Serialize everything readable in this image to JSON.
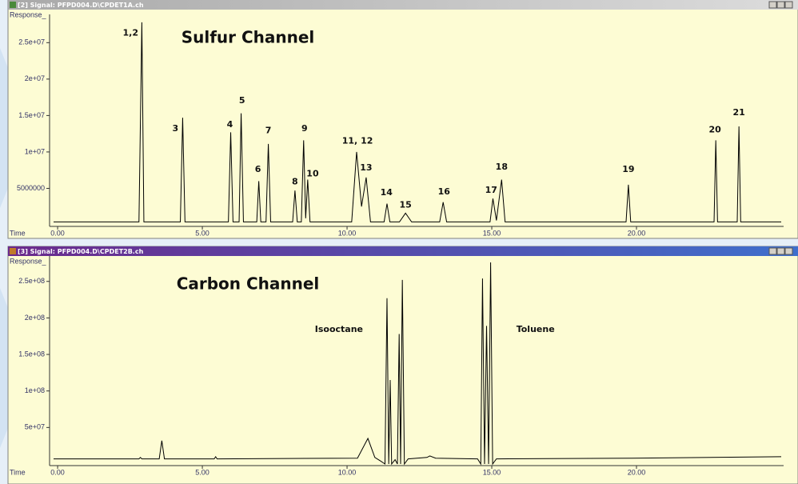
{
  "chart_data": [
    {
      "type": "line",
      "window_title": "[2] Signal: PFPD004.D\\CPDET1A.ch",
      "title": "Sulfur Channel",
      "y_label": "Response_",
      "x_label": "Time",
      "color": "#000000",
      "xlim": [
        -0.14,
        25.0
      ],
      "ylim": [
        0,
        28000000
      ],
      "xticks": [
        {
          "value": 0,
          "label": "0.00"
        },
        {
          "value": 5,
          "label": "5.00"
        },
        {
          "value": 10,
          "label": "10.00"
        },
        {
          "value": 15,
          "label": "15.00"
        },
        {
          "value": 20,
          "label": "20.00"
        }
      ],
      "yticks": [
        5000000,
        {
          "value": 10000000,
          "label": "1e+07"
        },
        {
          "value": 15000000,
          "label": "1.5e+07"
        },
        {
          "value": 20000000,
          "label": "2e+07"
        },
        {
          "value": 25000000,
          "label": "2.5e+07"
        }
      ],
      "x": [
        -0.14,
        2.81,
        2.91,
        2.98,
        4.24,
        4.32,
        4.4,
        5.9,
        5.98,
        6.06,
        6.27,
        6.34,
        6.42,
        6.88,
        6.95,
        7.02,
        7.2,
        7.28,
        7.36,
        8.12,
        8.2,
        8.28,
        8.42,
        8.5,
        8.57,
        8.64,
        8.72,
        10.16,
        10.33,
        10.5,
        10.66,
        10.81,
        11.28,
        11.38,
        11.48,
        11.81,
        12.02,
        12.23,
        13.2,
        13.32,
        13.44,
        14.94,
        15.04,
        15.16,
        15.34,
        15.46,
        19.64,
        19.72,
        19.8,
        22.68,
        22.74,
        22.8,
        23.48,
        23.54,
        23.6,
        25.0
      ],
      "values": [
        400000,
        400000,
        27800000,
        400000,
        400000,
        14700000,
        400000,
        400000,
        12700000,
        400000,
        400000,
        15300000,
        400000,
        400000,
        6000000,
        400000,
        400000,
        11100000,
        400000,
        400000,
        4700000,
        400000,
        400000,
        11600000,
        900000,
        6200000,
        400000,
        400000,
        10000000,
        2500000,
        6500000,
        400000,
        400000,
        2900000,
        400000,
        400000,
        1600000,
        400000,
        400000,
        3100000,
        400000,
        400000,
        3600000,
        600000,
        6200000,
        400000,
        400000,
        5500000,
        400000,
        400000,
        11600000,
        400000,
        400000,
        13500000,
        400000,
        400000
      ],
      "annotations": [
        {
          "text": "1,2",
          "x": 2.52,
          "y": 26300000
        },
        {
          "text": "3",
          "x": 4.07,
          "y": 13200000
        },
        {
          "text": "4",
          "x": 5.95,
          "y": 13700000
        },
        {
          "text": "5",
          "x": 6.37,
          "y": 17000000
        },
        {
          "text": "6",
          "x": 6.92,
          "y": 7600000
        },
        {
          "text": "7",
          "x": 7.28,
          "y": 12900000
        },
        {
          "text": "8",
          "x": 8.2,
          "y": 5900000
        },
        {
          "text": "9",
          "x": 8.53,
          "y": 13200000
        },
        {
          "text": "10",
          "x": 8.81,
          "y": 7000000
        },
        {
          "text": "11, 12",
          "x": 10.36,
          "y": 11500000
        },
        {
          "text": "13",
          "x": 10.66,
          "y": 7800000
        },
        {
          "text": "14",
          "x": 11.36,
          "y": 4400000
        },
        {
          "text": "15",
          "x": 12.02,
          "y": 2700000
        },
        {
          "text": "16",
          "x": 13.35,
          "y": 4500000
        },
        {
          "text": "17",
          "x": 14.98,
          "y": 4700000
        },
        {
          "text": "18",
          "x": 15.34,
          "y": 7900000
        },
        {
          "text": "19",
          "x": 19.72,
          "y": 7600000
        },
        {
          "text": "20",
          "x": 22.71,
          "y": 13000000
        },
        {
          "text": "21",
          "x": 23.54,
          "y": 15400000
        }
      ]
    },
    {
      "type": "line",
      "window_title": "[3] Signal: PFPD004.D\\CPDET2B.ch",
      "title": "Carbon Channel",
      "y_label": "Response_",
      "x_label": "Time",
      "color": "#000000",
      "xlim": [
        -0.14,
        25.0
      ],
      "ylim": [
        0,
        276000000
      ],
      "xticks": [
        {
          "value": 0,
          "label": "0.00"
        },
        {
          "value": 5,
          "label": "5.00"
        },
        {
          "value": 10,
          "label": "10.00"
        },
        {
          "value": 15,
          "label": "15.00"
        },
        {
          "value": 20,
          "label": "20.00"
        }
      ],
      "yticks": [
        {
          "value": 50000000,
          "label": "5e+07"
        },
        {
          "value": 100000000,
          "label": "1e+08"
        },
        {
          "value": 150000000,
          "label": "1.5e+08"
        },
        {
          "value": 200000000,
          "label": "2e+08"
        },
        {
          "value": 250000000,
          "label": "2.5e+08"
        }
      ],
      "x": [
        -0.14,
        2.81,
        2.86,
        2.91,
        3.51,
        3.6,
        3.69,
        5.41,
        5.46,
        5.51,
        10.36,
        10.72,
        10.96,
        11.16,
        11.31,
        11.38,
        11.44,
        11.49,
        11.54,
        11.66,
        11.74,
        11.8,
        11.85,
        11.91,
        11.98,
        12.11,
        12.76,
        12.86,
        13.06,
        14.51,
        14.62,
        14.68,
        14.75,
        14.82,
        14.89,
        14.96,
        15.03,
        15.16,
        19.86,
        25.0
      ],
      "values": [
        7000000,
        7000000,
        9000000,
        7000000,
        7000000,
        32000000,
        7000000,
        7000000,
        10000000,
        7000000,
        8000000,
        35000000,
        9000000,
        4000000,
        0,
        227000000,
        0,
        115000000,
        0,
        6000000,
        0,
        178000000,
        0,
        252000000,
        0,
        7000000,
        9000000,
        11000000,
        8000000,
        7000000,
        0,
        254000000,
        0,
        189000000,
        0,
        276000000,
        0,
        7000000,
        8000000,
        10000000
      ],
      "annotations": [
        {
          "text": "Isooctane",
          "x": 9.72,
          "y": 184000000
        },
        {
          "text": "Toluene",
          "x": 16.51,
          "y": 184000000
        }
      ]
    }
  ]
}
